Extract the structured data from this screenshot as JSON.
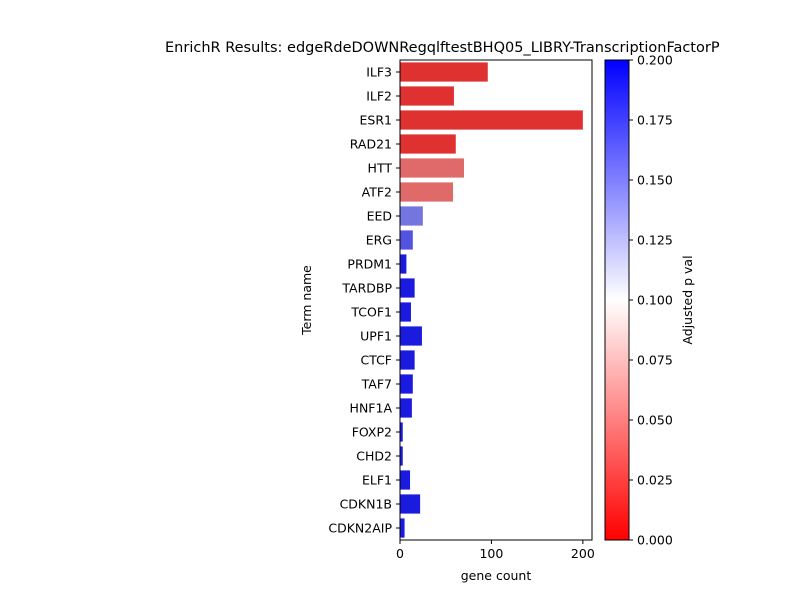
{
  "chart_data": {
    "type": "bar",
    "orientation": "horizontal",
    "title": "EnrichR Results: edgeRdeDOWNRegqlftestBHQ05_LIBRY-TranscriptionFactorP",
    "xlabel": "gene count",
    "ylabel": "Term name",
    "xlim": [
      0,
      210
    ],
    "xticks": [
      0,
      100,
      200
    ],
    "grid": false,
    "categories": [
      "ILF3",
      "ILF2",
      "ESR1",
      "RAD21",
      "HTT",
      "ATF2",
      "EED",
      "ERG",
      "PRDM1",
      "TARDBP",
      "TCOF1",
      "UPF1",
      "CTCF",
      "TAF7",
      "HNF1A",
      "FOXP2",
      "CHD2",
      "ELF1",
      "CDKN1B",
      "CDKN2AIP"
    ],
    "values": [
      96,
      59,
      200,
      61,
      70,
      58,
      25,
      14,
      7,
      16,
      12,
      24,
      16,
      14,
      13,
      3,
      3,
      11,
      22,
      5
    ],
    "adjusted_p": [
      0.015,
      0.015,
      0.015,
      0.015,
      0.04,
      0.04,
      0.155,
      0.17,
      0.195,
      0.195,
      0.195,
      0.195,
      0.195,
      0.195,
      0.195,
      0.195,
      0.195,
      0.195,
      0.195,
      0.195
    ],
    "colorbar": {
      "label": "Adjusted p val",
      "range": [
        0,
        0.2
      ],
      "ticks": [
        "0.000",
        "0.025",
        "0.050",
        "0.075",
        "0.100",
        "0.125",
        "0.150",
        "0.175",
        "0.200"
      ],
      "colors": [
        "#ff0000",
        "#ffffff",
        "#0000ff"
      ]
    }
  }
}
